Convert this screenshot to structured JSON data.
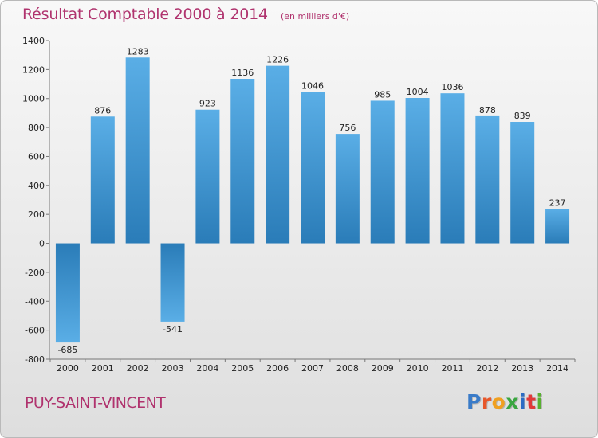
{
  "title": {
    "main": "Résultat Comptable 2000 à 2014",
    "sub": "(en milliers d'€)"
  },
  "commune": "PUY-SAINT-VINCENT",
  "logo": {
    "text": "Proxiti",
    "colors": [
      "#3a7bc8",
      "#e8572a",
      "#f0a020",
      "#3aa640",
      "#2b6cc4",
      "#e03a3a",
      "#58b030"
    ]
  },
  "chart_data": {
    "type": "bar",
    "title": "Résultat Comptable 2000 à 2014",
    "subtitle": "(en milliers d'€)",
    "xlabel": "",
    "ylabel": "",
    "categories": [
      "2000",
      "2001",
      "2002",
      "2003",
      "2004",
      "2005",
      "2006",
      "2007",
      "2008",
      "2009",
      "2010",
      "2011",
      "2012",
      "2013",
      "2014"
    ],
    "values": [
      -685,
      876,
      1283,
      -541,
      923,
      1136,
      1226,
      1046,
      756,
      985,
      1004,
      1036,
      878,
      839,
      237
    ],
    "ylim": [
      -800,
      1400
    ],
    "yticks": [
      -800,
      -600,
      -400,
      -200,
      0,
      200,
      400,
      600,
      800,
      1000,
      1200,
      1400
    ],
    "grid": false,
    "bar_color_light": "#5aaee6",
    "bar_color_dark": "#2a7cb8"
  }
}
